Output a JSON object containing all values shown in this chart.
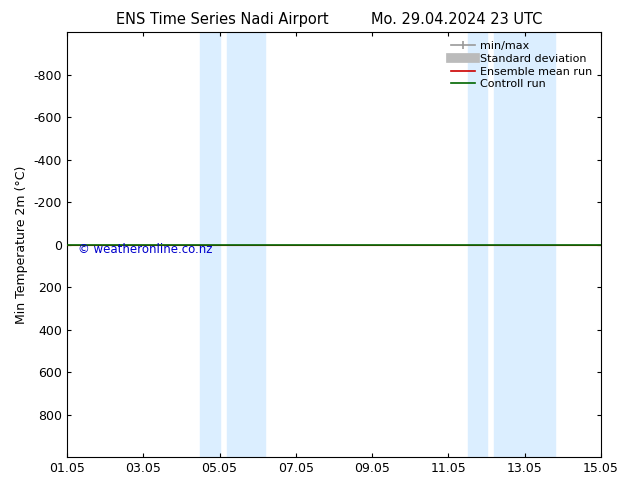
{
  "title_left": "ENS Time Series Nadi Airport",
  "title_right": "Mo. 29.04.2024 23 UTC",
  "ylabel": "Min Temperature 2m (°C)",
  "ylim": [
    -1000,
    1000
  ],
  "yticks": [
    -800,
    -600,
    -400,
    -200,
    0,
    200,
    400,
    600,
    800
  ],
  "xtick_labels": [
    "01.05",
    "03.05",
    "05.05",
    "07.05",
    "09.05",
    "11.05",
    "13.05",
    "15.05"
  ],
  "xtick_positions": [
    0,
    2,
    4,
    6,
    8,
    10,
    12,
    14
  ],
  "shaded_bands": [
    [
      3.5,
      4.0
    ],
    [
      4.2,
      5.2
    ],
    [
      10.5,
      11.0
    ],
    [
      11.2,
      12.8
    ]
  ],
  "control_run_y": 0,
  "control_run_color": "#006600",
  "ensemble_mean_color": "#cc0000",
  "band_color": "#dbeeff",
  "watermark": "© weatheronline.co.nz",
  "watermark_color": "#0000cc",
  "background_color": "#ffffff",
  "legend_labels": [
    "min/max",
    "Standard deviation",
    "Ensemble mean run",
    "Controll run"
  ],
  "legend_colors": [
    "#aaaaaa",
    "#bbbbbb",
    "#cc0000",
    "#006600"
  ]
}
